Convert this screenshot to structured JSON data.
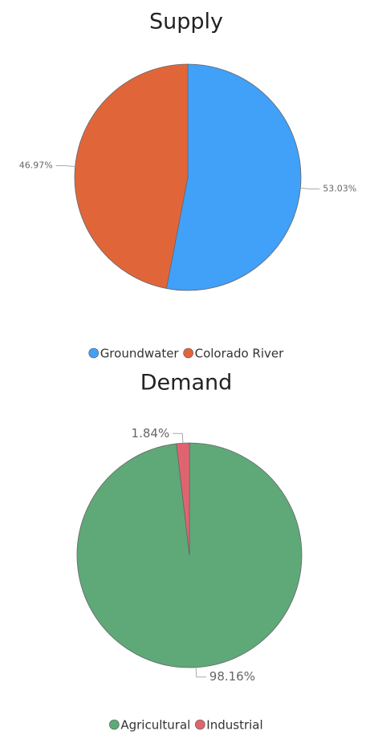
{
  "chart_data": [
    {
      "type": "pie",
      "title": "Supply",
      "categories": [
        "Groundwater",
        "Colorado River"
      ],
      "values": [
        53.03,
        46.97
      ],
      "value_labels": [
        "53.03%",
        "46.97%"
      ],
      "colors": [
        "#41a0f7",
        "#e0663a"
      ],
      "legend": "bottom"
    },
    {
      "type": "pie",
      "title": "Demand",
      "categories": [
        "Agricultural",
        "Industrial"
      ],
      "values": [
        98.16,
        1.84
      ],
      "value_labels": [
        "98.16%",
        "1.84%"
      ],
      "colors": [
        "#5fa878",
        "#e06470"
      ],
      "legend": "bottom"
    }
  ]
}
